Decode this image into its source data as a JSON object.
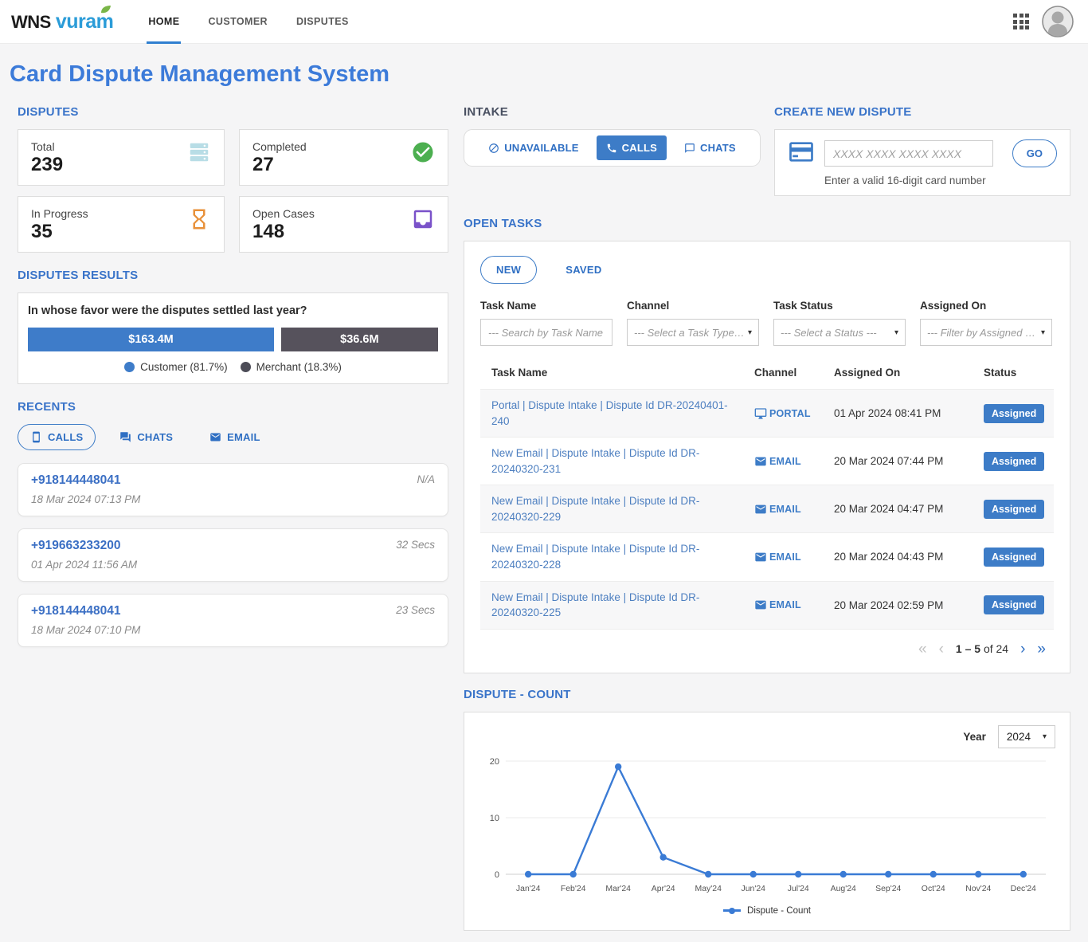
{
  "header": {
    "logo": {
      "wns": "WNS",
      "vuram": "vuram",
      "leaf_color": "#7ab648",
      "vuram_color": "#2b9cd8"
    },
    "nav": [
      {
        "label": "HOME",
        "active": true
      },
      {
        "label": "CUSTOMER",
        "active": false
      },
      {
        "label": "DISPUTES",
        "active": false
      }
    ],
    "icons": {
      "apps": "apps-grid-icon",
      "avatar": "user-avatar-icon"
    }
  },
  "page_title": "Card Dispute Management System",
  "colors": {
    "primary_blue": "#3d7cc7",
    "title_blue": "#3c7bd9",
    "section_blue": "#3a74c9",
    "dark_slate": "#4a5162",
    "link_blue": "#4d7fc0",
    "line_blue": "#3a7bd5"
  },
  "disputes": {
    "title": "DISPUTES",
    "cards": [
      {
        "label": "Total",
        "value": "239",
        "icon": "server-stack-icon",
        "color": "#b8dde6"
      },
      {
        "label": "Completed",
        "value": "27",
        "icon": "check-circle-icon",
        "color": "#4caf50"
      },
      {
        "label": "In Progress",
        "value": "35",
        "icon": "hourglass-icon",
        "color": "#e8913a"
      },
      {
        "label": "Open Cases",
        "value": "148",
        "icon": "inbox-tray-icon",
        "color": "#7a52c9"
      }
    ]
  },
  "disputes_results": {
    "title": "DISPUTES RESULTS",
    "question": "In whose favor were the disputes settled last year?",
    "bars": [
      {
        "label": "$163.4M",
        "name": "Customer",
        "percent": "81.7%",
        "width_pct": 60,
        "color": "#3e7cc9"
      },
      {
        "label": "$36.6M",
        "name": "Merchant",
        "percent": "18.3%",
        "width_pct": 38.2,
        "color": "#56525c"
      }
    ],
    "legend": [
      {
        "label": "Customer (81.7%)",
        "color": "#3e7cc9"
      },
      {
        "label": "Merchant (18.3%)",
        "color": "#4c4c57"
      }
    ]
  },
  "recents": {
    "title": "RECENTS",
    "tabs": [
      {
        "label": "CALLS",
        "icon": "mobile-phone-icon",
        "active": true
      },
      {
        "label": "CHATS",
        "icon": "chat-bubbles-icon",
        "active": false
      },
      {
        "label": "EMAIL",
        "icon": "envelope-icon",
        "active": false
      }
    ],
    "calls": [
      {
        "number": "+918144448041",
        "datetime": "18 Mar 2024 07:13 PM",
        "duration": "N/A"
      },
      {
        "number": "+919663233200",
        "datetime": "01 Apr 2024 11:56 AM",
        "duration": "32 Secs"
      },
      {
        "number": "+918144448041",
        "datetime": "18 Mar 2024 07:10 PM",
        "duration": "23 Secs"
      }
    ]
  },
  "intake": {
    "title": "INTAKE",
    "buttons": [
      {
        "label": "UNAVAILABLE",
        "icon": "block-icon",
        "active": false
      },
      {
        "label": "CALLS",
        "icon": "phone-call-icon",
        "active": true
      },
      {
        "label": "CHATS",
        "icon": "chat-bubble-icon",
        "active": false
      }
    ]
  },
  "create_dispute": {
    "title": "CREATE NEW DISPUTE",
    "card_icon": "credit-card-icon",
    "input_placeholder": "XXXX XXXX XXXX XXXX",
    "go_label": "GO",
    "helper": "Enter a valid 16-digit card number"
  },
  "open_tasks": {
    "title": "OPEN TASKS",
    "tabs": [
      {
        "label": "NEW",
        "active": true
      },
      {
        "label": "SAVED",
        "active": false
      }
    ],
    "filters": [
      {
        "label": "Task Name",
        "type": "input",
        "placeholder": "--- Search by Task Name ---"
      },
      {
        "label": "Channel",
        "type": "select",
        "value": "--- Select a Task Type ---"
      },
      {
        "label": "Task Status",
        "type": "select",
        "value": "--- Select a Status ---"
      },
      {
        "label": "Assigned On",
        "type": "select",
        "value": "--- Filter by Assigned o..."
      }
    ],
    "columns": [
      "Task Name",
      "Channel",
      "Assigned On",
      "Status"
    ],
    "rows": [
      {
        "task": "Portal | Dispute Intake | Dispute Id DR-20240401-240",
        "channel": "PORTAL",
        "icon": "icon-portal",
        "assigned_on": "01 Apr 2024 08:41 PM",
        "status": "Assigned"
      },
      {
        "task": "New Email | Dispute Intake | Dispute Id DR-20240320-231",
        "channel": "EMAIL",
        "icon": "icon-email",
        "assigned_on": "20 Mar 2024 07:44 PM",
        "status": "Assigned"
      },
      {
        "task": "New Email | Dispute Intake | Dispute Id DR-20240320-229",
        "channel": "EMAIL",
        "icon": "icon-email",
        "assigned_on": "20 Mar 2024 04:47 PM",
        "status": "Assigned"
      },
      {
        "task": "New Email | Dispute Intake | Dispute Id DR-20240320-228",
        "channel": "EMAIL",
        "icon": "icon-email",
        "assigned_on": "20 Mar 2024 04:43 PM",
        "status": "Assigned"
      },
      {
        "task": "New Email | Dispute Intake | Dispute Id DR-20240320-225",
        "channel": "EMAIL",
        "icon": "icon-email",
        "assigned_on": "20 Mar 2024 02:59 PM",
        "status": "Assigned"
      }
    ],
    "pagination": {
      "first": "«",
      "prev": "‹",
      "range": "1 – 5",
      "of": "of 24",
      "next": "›",
      "last": "»"
    }
  },
  "dispute_count": {
    "title": "DISPUTE - COUNT",
    "year_label": "Year",
    "year_value": "2024"
  },
  "chart_data": {
    "type": "line",
    "title": "Dispute - Count",
    "x": [
      "Jan'24",
      "Feb'24",
      "Mar'24",
      "Apr'24",
      "May'24",
      "Jun'24",
      "Jul'24",
      "Aug'24",
      "Sep'24",
      "Oct'24",
      "Nov'24",
      "Dec'24"
    ],
    "series": [
      {
        "name": "Dispute - Count",
        "values": [
          0,
          0,
          19,
          3,
          0,
          0,
          0,
          0,
          0,
          0,
          0,
          0
        ],
        "color": "#3a7bd5"
      }
    ],
    "xlabel": "",
    "ylabel": "",
    "ylim": [
      0,
      20
    ],
    "yticks": [
      0,
      10,
      20
    ],
    "grid": true,
    "legend_position": "bottom"
  }
}
